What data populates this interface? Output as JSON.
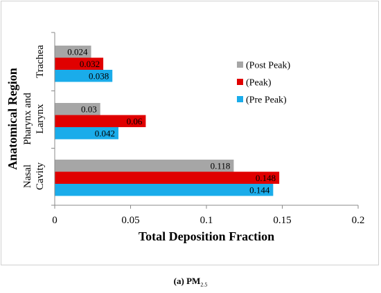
{
  "chart_data": {
    "type": "bar",
    "orientation": "horizontal",
    "title": "",
    "xlabel": "Total Deposition Fraction",
    "ylabel": "Anatomical Region",
    "xlim": [
      0,
      0.2
    ],
    "xticks": [
      "0",
      "0.05",
      "0.1",
      "0.15",
      "0.2"
    ],
    "categories": [
      "Trachea",
      "Pharynx and Larynx",
      "Nasal Cavity"
    ],
    "category_lines": [
      [
        "Trachea"
      ],
      [
        "Pharynx and",
        "Larynx"
      ],
      [
        "Nasal",
        "Cavity"
      ]
    ],
    "series": [
      {
        "name": "(Post Peak)",
        "color": "#a6a6a6",
        "values": [
          0.024,
          0.03,
          0.118
        ],
        "labels": [
          "0.024",
          "0.03",
          "0.118"
        ]
      },
      {
        "name": "(Peak)",
        "color": "#e00000",
        "values": [
          0.032,
          0.06,
          0.148
        ],
        "labels": [
          "0.032",
          "0.06",
          "0.148"
        ]
      },
      {
        "name": "(Pre Peak)",
        "color": "#1aacea",
        "values": [
          0.038,
          0.042,
          0.144
        ],
        "labels": [
          "0.038",
          "0.042",
          "0.144"
        ]
      }
    ],
    "legend_position": "top-right",
    "grid": false
  },
  "caption": {
    "prefix": "(a)",
    "text": "PM",
    "subscript": "2.5"
  }
}
